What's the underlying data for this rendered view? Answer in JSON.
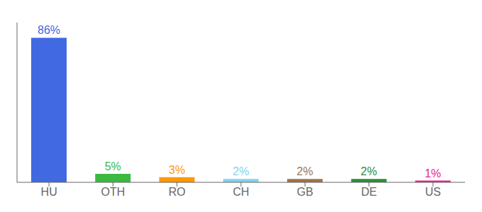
{
  "chart_data": {
    "type": "bar",
    "categories": [
      "HU",
      "OTH",
      "RO",
      "CH",
      "GB",
      "DE",
      "US"
    ],
    "values": [
      86,
      5,
      3,
      2,
      2,
      2,
      1
    ],
    "value_labels": [
      "86%",
      "5%",
      "3%",
      "2%",
      "2%",
      "2%",
      "1%"
    ],
    "data_labels": true,
    "colors": [
      "#4169e1",
      "#3cb940",
      "#ff9800",
      "#80d4f0",
      "#a0724a",
      "#2e8b3c",
      "#e91e8c"
    ],
    "ylim": [
      0,
      95
    ],
    "tick_labels": "x",
    "grid": false
  }
}
